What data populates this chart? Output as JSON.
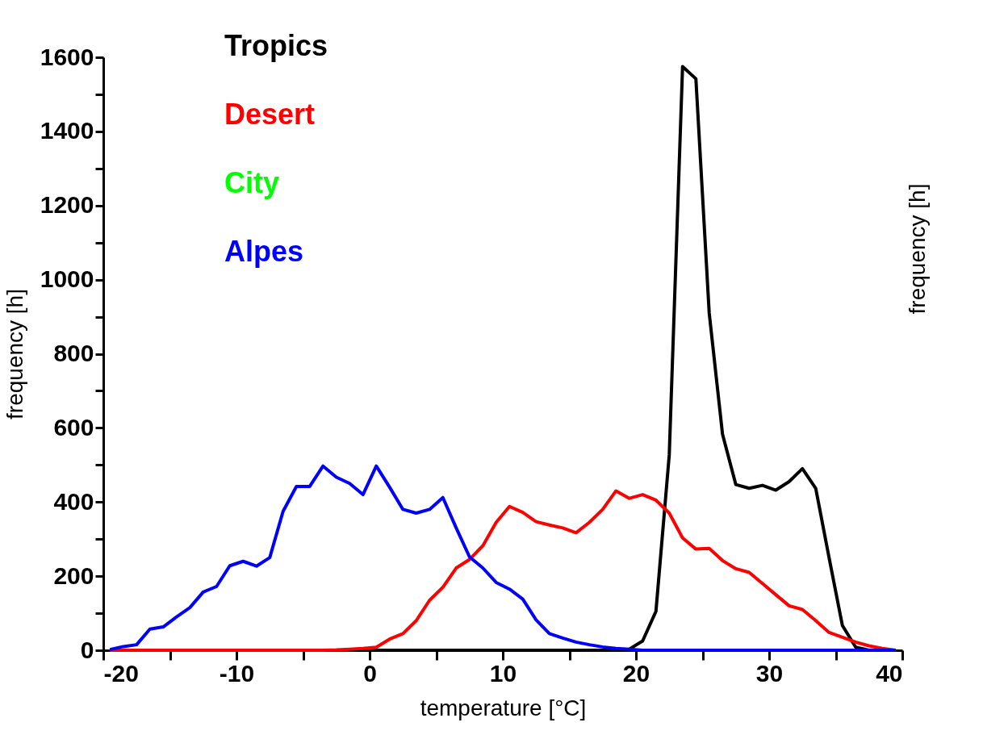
{
  "chart_data": {
    "type": "line",
    "xlabel": "temperature [°C]",
    "ylabel": "frequency [h]",
    "y2label": "frequency [h]",
    "x": [
      -19.5,
      -18.5,
      -17.5,
      -16.5,
      -15.5,
      -14.5,
      -13.5,
      -12.5,
      -11.5,
      -10.5,
      -9.5,
      -8.5,
      -7.5,
      -6.5,
      -5.5,
      -4.5,
      -3.5,
      -2.5,
      -1.5,
      -0.5,
      0.5,
      1.5,
      2.5,
      3.5,
      4.5,
      5.5,
      6.5,
      7.5,
      8.5,
      9.5,
      10.5,
      11.5,
      12.5,
      13.5,
      14.5,
      15.5,
      16.5,
      17.5,
      18.5,
      19.5,
      20.5,
      21.5,
      22.5,
      23.5,
      24.5,
      25.5,
      26.5,
      27.5,
      28.5,
      29.5,
      30.5,
      31.5,
      32.5,
      33.5,
      34.5,
      35.5,
      36.5,
      37.5,
      38.5,
      39.5
    ],
    "series": [
      {
        "name": "Tropics",
        "color": "#000000",
        "values": [
          0,
          0,
          0,
          0,
          0,
          0,
          0,
          0,
          0,
          0,
          0,
          0,
          0,
          0,
          0,
          0,
          0,
          0,
          0,
          0,
          0,
          0,
          0,
          0,
          0,
          0,
          0,
          0,
          0,
          0,
          0,
          0,
          0,
          0,
          0,
          0,
          0,
          0,
          0,
          3,
          25,
          105,
          527,
          1575,
          1542,
          910,
          583,
          447,
          437,
          445,
          432,
          455,
          490,
          437,
          250,
          67,
          8,
          0,
          0,
          0
        ]
      },
      {
        "name": "Desert",
        "color": "#ff0000",
        "values": [
          0,
          0,
          0,
          0,
          0,
          0,
          0,
          0,
          0,
          0,
          0,
          0,
          0,
          0,
          0,
          0,
          0,
          1,
          3,
          5,
          8,
          30,
          45,
          80,
          135,
          170,
          222,
          245,
          282,
          345,
          388,
          372,
          347,
          338,
          330,
          317,
          345,
          380,
          430,
          410,
          420,
          405,
          370,
          303,
          273,
          275,
          242,
          220,
          210,
          180,
          150,
          120,
          110,
          80,
          48,
          35,
          22,
          12,
          5,
          0
        ]
      },
      {
        "name": "City",
        "color": "#00ff00",
        "values": [
          null,
          null,
          null,
          null,
          null,
          null,
          null,
          null,
          null,
          null,
          null,
          null,
          null,
          null,
          null,
          null,
          null,
          null,
          null,
          null,
          null,
          null,
          null,
          null,
          null,
          null,
          null,
          null,
          null,
          null,
          null,
          null,
          null,
          null,
          null,
          null,
          null,
          null,
          null,
          null,
          null,
          null,
          null,
          null,
          null,
          null,
          null,
          null,
          null,
          null,
          null,
          null,
          null,
          null,
          null,
          null,
          null,
          null,
          null,
          null
        ]
      },
      {
        "name": "Alpes",
        "color": "#0000ff",
        "values": [
          2,
          10,
          15,
          57,
          63,
          90,
          115,
          157,
          172,
          228,
          240,
          227,
          250,
          375,
          442,
          442,
          497,
          467,
          450,
          420,
          497,
          440,
          380,
          370,
          380,
          412,
          330,
          252,
          222,
          183,
          165,
          138,
          82,
          45,
          33,
          22,
          15,
          9,
          5,
          3,
          0,
          0,
          0,
          0,
          0,
          0,
          0,
          0,
          0,
          0,
          0,
          0,
          0,
          0,
          0,
          0,
          0,
          0,
          0,
          0
        ]
      }
    ],
    "xlim": [
      -20,
      40
    ],
    "xticks": [
      -20,
      {
        "value": -15,
        "label": null
      },
      -10,
      {
        "value": -5,
        "label": null
      },
      0,
      {
        "value": 5,
        "label": null
      },
      10,
      {
        "value": 15,
        "label": null
      },
      20,
      {
        "value": 25,
        "label": null
      },
      30,
      {
        "value": 35,
        "label": null
      },
      40
    ],
    "ylim": [
      0,
      1600
    ],
    "yticks": [
      0,
      {
        "value": 100,
        "label": null
      },
      200,
      {
        "value": 300,
        "label": null
      },
      400,
      {
        "value": 500,
        "label": null
      },
      600,
      {
        "value": 700,
        "label": null
      },
      800,
      {
        "value": 900,
        "label": null
      },
      1000,
      {
        "value": 1100,
        "label": null
      },
      1200,
      {
        "value": 1300,
        "label": null
      },
      1400,
      {
        "value": 1500,
        "label": null
      },
      1600
    ],
    "legend": "top left",
    "grid": false,
    "marker": "none",
    "line_style": "solid"
  }
}
